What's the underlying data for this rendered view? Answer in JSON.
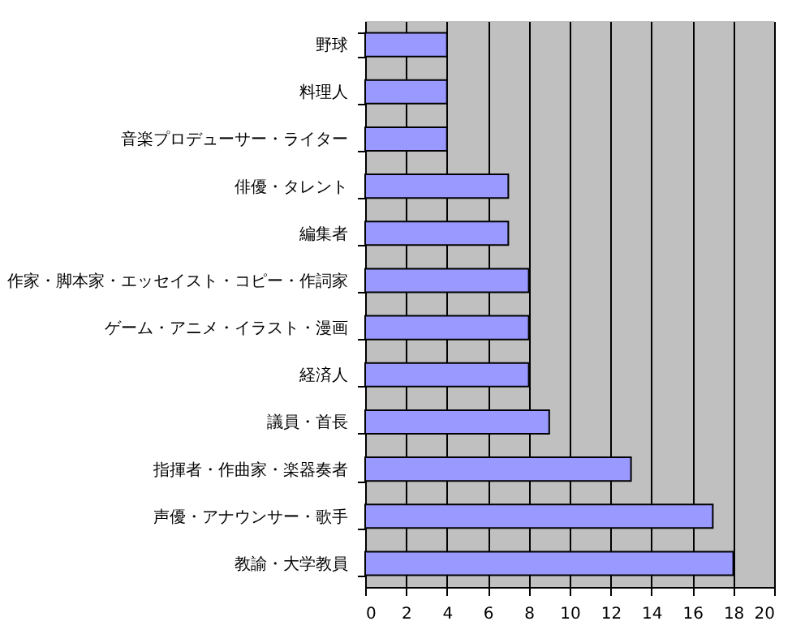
{
  "chart_data": {
    "type": "bar",
    "orientation": "horizontal",
    "categories": [
      "野球",
      "料理人",
      "音楽プロデューサー・ライター",
      "俳優・タレント",
      "編集者",
      "作家・脚本家・エッセイスト・コピー・作詞家",
      "ゲーム・アニメ・イラスト・漫画",
      "経済人",
      "議員・首長",
      "指揮者・作曲家・楽器奏者",
      "声優・アナウンサー・歌手",
      "教諭・大学教員"
    ],
    "values": [
      4,
      4,
      4,
      7,
      7,
      8,
      8,
      8,
      9,
      13,
      17,
      18
    ],
    "color": "#9999ff",
    "xlim": [
      0,
      20
    ],
    "xticks": [
      0,
      2,
      4,
      6,
      8,
      10,
      12,
      14,
      16,
      18,
      20
    ],
    "grid": "x"
  }
}
